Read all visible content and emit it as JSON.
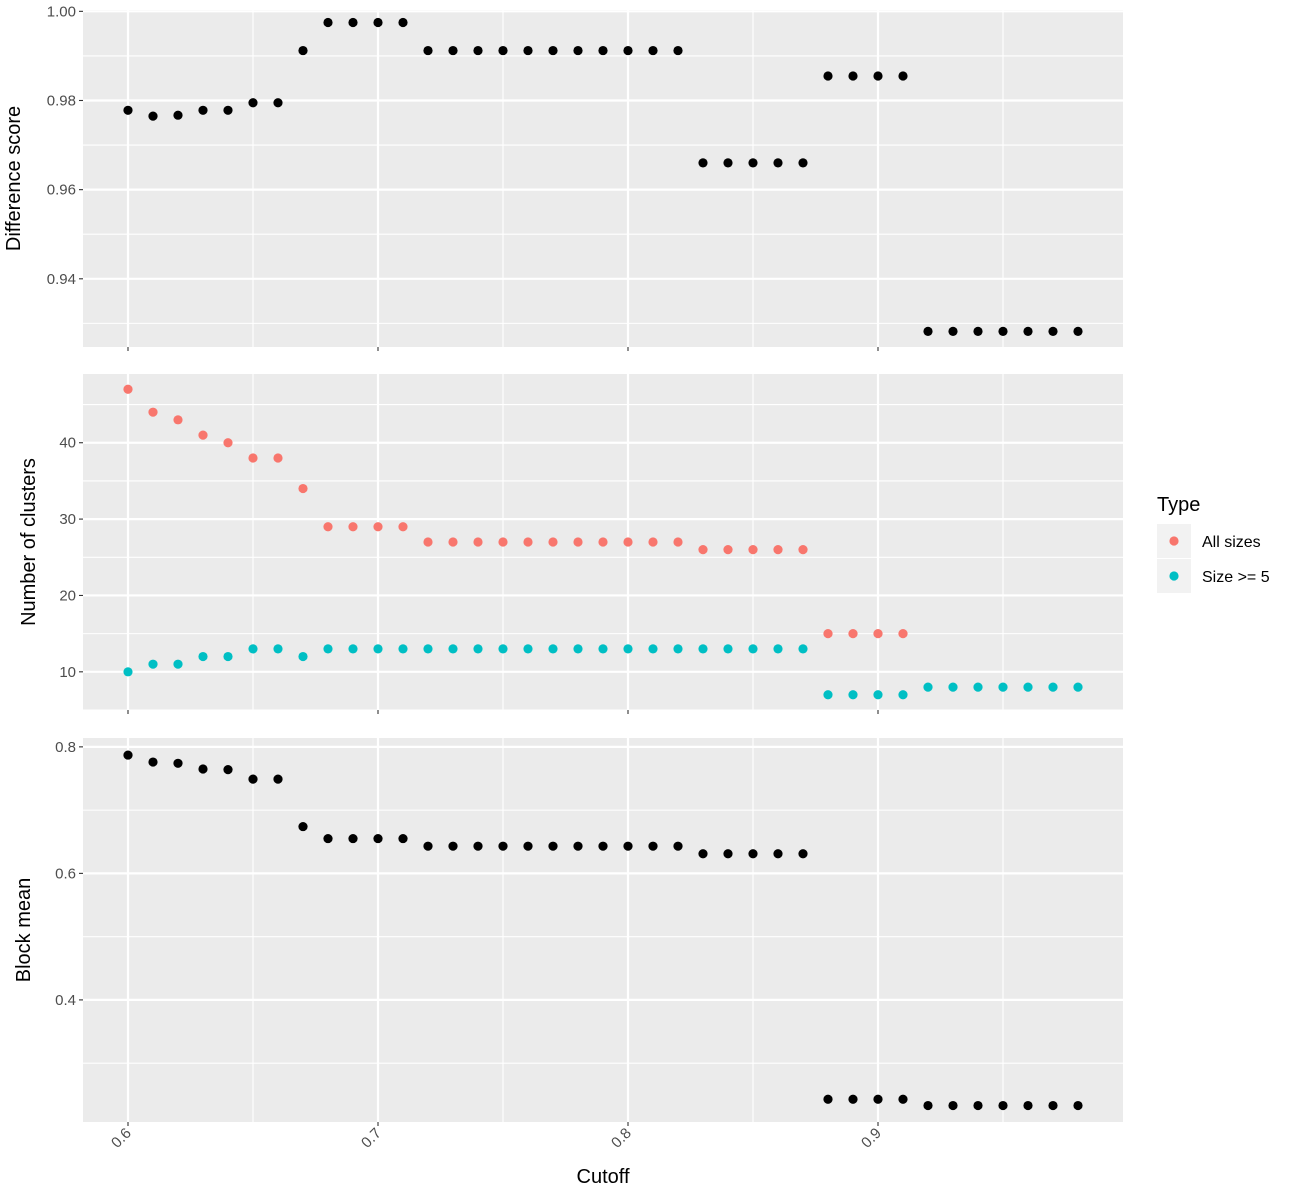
{
  "chart_data": {
    "type": "scatter",
    "xlabel": "Cutoff",
    "x_ticks": [
      0.6,
      0.7,
      0.8,
      0.9
    ],
    "xlim": [
      0.582,
      0.998
    ],
    "x": [
      0.6,
      0.61,
      0.62,
      0.63,
      0.64,
      0.65,
      0.66,
      0.67,
      0.68,
      0.69,
      0.7,
      0.71,
      0.72,
      0.73,
      0.74,
      0.75,
      0.76,
      0.77,
      0.78,
      0.79,
      0.8,
      0.81,
      0.82,
      0.83,
      0.84,
      0.85,
      0.86,
      0.87,
      0.88,
      0.89,
      0.9,
      0.91,
      0.92,
      0.93,
      0.94,
      0.95,
      0.96,
      0.97,
      0.98
    ],
    "legend": {
      "title": "Type",
      "position": "right",
      "entries": [
        {
          "label": "All sizes",
          "color": "#F8766D"
        },
        {
          "label": "Size >= 5",
          "color": "#00BFC4"
        }
      ]
    },
    "panels": [
      {
        "ylabel": "Difference score",
        "ylim": [
          0.9247,
          1.0003
        ],
        "y_ticks": [
          0.94,
          0.96,
          0.98,
          1.0
        ],
        "y_tick_labels": [
          "0.94",
          "0.96",
          "0.98",
          "1.00"
        ],
        "series": [
          {
            "color": "#000000",
            "values": [
              0.9778,
              0.9765,
              0.9767,
              0.9778,
              0.9778,
              0.9795,
              0.9795,
              0.9912,
              0.9975,
              0.9975,
              0.9975,
              0.9975,
              0.9912,
              0.9912,
              0.9912,
              0.9912,
              0.9912,
              0.9912,
              0.9912,
              0.9912,
              0.9912,
              0.9912,
              0.9912,
              0.966,
              0.966,
              0.966,
              0.966,
              0.966,
              0.9855,
              0.9855,
              0.9855,
              0.9855,
              0.9282,
              0.9282,
              0.9282,
              0.9282,
              0.9282,
              0.9282,
              0.9282
            ]
          }
        ]
      },
      {
        "ylabel": "Number of clusters",
        "ylim": [
          5.0,
          49.0
        ],
        "y_ticks": [
          10,
          20,
          30,
          40
        ],
        "y_tick_labels": [
          "10",
          "20",
          "30",
          "40"
        ],
        "series": [
          {
            "name": "All sizes",
            "color": "#F8766D",
            "values": [
              47,
              44,
              43,
              41,
              40,
              38,
              38,
              34,
              29,
              29,
              29,
              29,
              27,
              27,
              27,
              27,
              27,
              27,
              27,
              27,
              27,
              27,
              27,
              26,
              26,
              26,
              26,
              26,
              15,
              15,
              15,
              15,
              null,
              null,
              null,
              null,
              null,
              null,
              null
            ]
          },
          {
            "name": "Size >= 5",
            "color": "#00BFC4",
            "values": [
              10,
              11,
              11,
              12,
              12,
              13,
              13,
              12,
              13,
              13,
              13,
              13,
              13,
              13,
              13,
              13,
              13,
              13,
              13,
              13,
              13,
              13,
              13,
              13,
              13,
              13,
              13,
              13,
              7,
              7,
              7,
              7,
              8,
              8,
              8,
              8,
              8,
              8,
              8
            ]
          }
        ]
      },
      {
        "ylabel": "Block mean",
        "ylim": [
          0.207,
          0.814
        ],
        "y_ticks": [
          0.4,
          0.6,
          0.8
        ],
        "y_tick_labels": [
          "0.4",
          "0.6",
          "0.8"
        ],
        "series": [
          {
            "color": "#000000",
            "values": [
              0.787,
              0.776,
              0.774,
              0.765,
              0.764,
              0.749,
              0.749,
              0.674,
              0.655,
              0.655,
              0.655,
              0.655,
              0.643,
              0.643,
              0.643,
              0.643,
              0.643,
              0.643,
              0.643,
              0.643,
              0.643,
              0.643,
              0.643,
              0.631,
              0.631,
              0.631,
              0.631,
              0.631,
              0.243,
              0.243,
              0.243,
              0.243,
              0.233,
              0.233,
              0.233,
              0.233,
              0.233,
              0.233,
              0.233
            ]
          }
        ]
      }
    ]
  }
}
